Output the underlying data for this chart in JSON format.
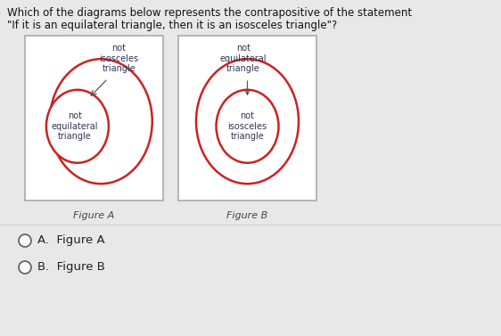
{
  "title_line1": "Which of the diagrams below represents the contrapositive of the statement",
  "title_line2": "\"If it is an equilateral triangle, then it is an isosceles triangle\"?",
  "figA_label": "Figure A",
  "figB_label": "Figure B",
  "figA_outer_text": "not\nisosceles\ntriangle",
  "figA_inner_text": "not\nequilateral\ntriangle",
  "figB_outer_text": "not\nequilateral\ntriangle",
  "figB_inner_text": "not\nisosceles\ntriangle",
  "answer_A": "A.  Figure A",
  "answer_B": "B.  Figure B",
  "bg_color": "#e8e8e8",
  "box_facecolor": "white",
  "box_edgecolor": "#aaaaaa",
  "ellipse_color": "#cc2222",
  "text_color": "#333355",
  "answer_color": "#222222",
  "title_color": "#111111",
  "fig_label_color": "#444444"
}
